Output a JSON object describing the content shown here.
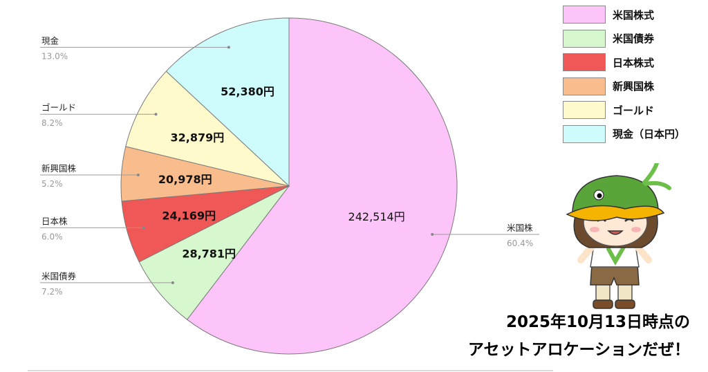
{
  "chart_data": {
    "type": "pie",
    "currency_suffix": "円",
    "slices": [
      {
        "label": "米国株",
        "percent_text": "60.4%",
        "value": 242514,
        "value_text": "242,514円",
        "color": "#fdc4f9"
      },
      {
        "label": "米国債券",
        "percent_text": "7.2%",
        "value": 28781,
        "value_text": "28,781円",
        "color": "#d7f8cf"
      },
      {
        "label": "日本株",
        "percent_text": "6.0%",
        "value": 24169,
        "value_text": "24,169円",
        "color": "#f05757"
      },
      {
        "label": "新興国株",
        "percent_text": "5.2%",
        "value": 20978,
        "value_text": "20,978円",
        "color": "#f9bd8d"
      },
      {
        "label": "ゴールド",
        "percent_text": "8.2%",
        "value": 32879,
        "value_text": "32,879円",
        "color": "#fefacc"
      },
      {
        "label": "現金",
        "percent_text": "13.0%",
        "value": 52380,
        "value_text": "52,380円",
        "color": "#cefcfd"
      }
    ],
    "legend": {
      "placement": "top-right",
      "entries": [
        {
          "label": "米国株式",
          "color": "#fdc4f9"
        },
        {
          "label": "米国債券",
          "color": "#d7f8cf"
        },
        {
          "label": "日本株式",
          "color": "#f05757"
        },
        {
          "label": "新興国株",
          "color": "#f9bd8d"
        },
        {
          "label": "ゴールド",
          "color": "#fefacc"
        },
        {
          "label": "現金（日本円）",
          "color": "#cefcfd"
        }
      ]
    }
  },
  "caption": {
    "line1": "2025年10月13日時点の",
    "line2": "アセットアロケーションだぜ！"
  },
  "mascot": {
    "icon": "duck-hat-mascot-icon"
  }
}
